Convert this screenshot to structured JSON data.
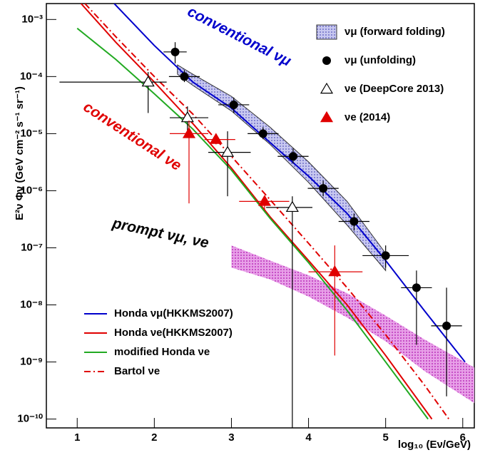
{
  "chart_data": {
    "type": "scatter",
    "y_label": "E²ν Φν (GeV cm⁻² s⁻¹ sr⁻¹)",
    "x_label": "log₁₀ (Eν/GeV)",
    "xlim": [
      0.6,
      6.15
    ],
    "ylim": [
      7e-11,
      0.0019
    ],
    "y_log": true,
    "grid": false,
    "xticks": [
      1,
      2,
      3,
      4,
      5,
      6
    ],
    "yticks": [
      {
        "value": 1e-10,
        "label": "10⁻¹⁰"
      },
      {
        "value": 1e-09,
        "label": "10⁻⁹"
      },
      {
        "value": 1e-08,
        "label": "10⁻⁸"
      },
      {
        "value": 1e-07,
        "label": "10⁻⁷"
      },
      {
        "value": 1e-06,
        "label": "10⁻⁶"
      },
      {
        "value": 1e-05,
        "label": "10⁻⁵"
      },
      {
        "value": 0.0001,
        "label": "10⁻⁴"
      },
      {
        "value": 0.001,
        "label": "10⁻³"
      }
    ],
    "annotations": [
      {
        "text": "conventional νμ",
        "color": "#0000cc"
      },
      {
        "text": "conventional νe",
        "color": "#e00000"
      },
      {
        "text": "prompt νμ, νe",
        "color": "#000000"
      }
    ],
    "series": [
      {
        "name": "Honda νμ(HKKMS2007)",
        "type": "line",
        "color": "#0000cc",
        "dash": "solid",
        "legend": "lower-left",
        "x": [
          1.48,
          2,
          2.5,
          3,
          3.5,
          4,
          4.5,
          5,
          5.5,
          6.03
        ],
        "values": [
          0.0019,
          0.00035,
          8e-05,
          2.8e-05,
          7e-06,
          1.8e-06,
          4e-07,
          6e-08,
          8e-09,
          1e-09
        ]
      },
      {
        "name": "Honda νe(HKKMS2007)",
        "type": "line",
        "color": "#e00000",
        "dash": "solid",
        "legend": "lower-left",
        "x": [
          1.05,
          1.5,
          2,
          2.5,
          3,
          3.5,
          4,
          4.5,
          5,
          5.6
        ],
        "values": [
          0.0019,
          0.0004,
          8e-05,
          1.5e-05,
          2.5e-06,
          3.5e-07,
          6e-08,
          1e-08,
          1.3e-09,
          1e-10
        ]
      },
      {
        "name": "modified Honda νe",
        "type": "line",
        "color": "#22aa22",
        "dash": "solid",
        "legend": "lower-left",
        "x": [
          1.0,
          1.5,
          2,
          2.5,
          3,
          3.5,
          4,
          4.5,
          5,
          5.55
        ],
        "values": [
          0.0007,
          0.0002,
          5e-05,
          1.2e-05,
          2.3e-06,
          3.3e-07,
          5.5e-08,
          8e-09,
          1e-09,
          1e-10
        ]
      },
      {
        "name": "Bartol νe",
        "type": "line",
        "color": "#e00000",
        "dash": "dashdot",
        "legend": "lower-left",
        "x": [
          1.1,
          1.5,
          2,
          2.5,
          3,
          3.5,
          4,
          4.5,
          5,
          5.5,
          5.82
        ],
        "values": [
          0.0019,
          0.0005,
          0.0001,
          2.2e-05,
          4e-06,
          7e-07,
          1.2e-07,
          2e-08,
          3e-09,
          4e-10,
          1e-10
        ]
      },
      {
        "name": "prompt band",
        "type": "band",
        "color": "#cc44cc",
        "legend": "none",
        "x": [
          3,
          3.5,
          4,
          4.5,
          5,
          5.5,
          6.15
        ],
        "upper": [
          1.1e-07,
          6e-08,
          3.3e-08,
          1.6e-08,
          6.5e-09,
          2.5e-09,
          8e-10
        ],
        "lower": [
          4.5e-08,
          2.8e-08,
          1.4e-08,
          6e-09,
          2.3e-09,
          7e-10,
          1.9e-10
        ]
      },
      {
        "name": "νμ (forward folding)",
        "type": "band",
        "color": "#7777cc",
        "legend": "upper-right",
        "x": [
          2.3,
          2.5,
          3,
          3.5,
          4,
          4.5,
          5
        ],
        "upper": [
          0.00016,
          0.00011,
          4.5e-05,
          1.3e-05,
          3.2e-06,
          6.5e-07,
          8e-08
        ],
        "lower": [
          0.00011,
          7e-05,
          2.5e-05,
          6.5e-06,
          1.4e-06,
          2.5e-07,
          4e-08
        ]
      },
      {
        "name": "νμ (unfolding)",
        "type": "errorbar",
        "color": "#000000",
        "marker": "circle",
        "legend": "upper-right",
        "x": [
          2.27,
          2.39,
          3.03,
          3.41,
          3.8,
          4.19,
          4.59,
          5.0,
          5.4,
          5.79
        ],
        "values": [
          0.00027,
          0.0001,
          3.2e-05,
          1e-05,
          4e-06,
          1.1e-06,
          2.9e-07,
          7.3e-08,
          2e-08,
          4.3e-09
        ],
        "x_low": [
          2.12,
          2.19,
          2.83,
          3.21,
          3.6,
          3.99,
          4.39,
          4.7,
          5.2,
          5.59
        ],
        "x_high": [
          2.42,
          2.59,
          3.23,
          3.61,
          4.0,
          4.39,
          4.79,
          5.3,
          5.6,
          5.99
        ],
        "y_low": [
          0.00017,
          8e-05,
          2.3e-05,
          8e-06,
          3e-06,
          8e-07,
          2e-07,
          4.5e-08,
          2e-09,
          2.5e-10
        ],
        "y_high": [
          0.0004,
          0.00013,
          4.3e-05,
          1.3e-05,
          5.5e-06,
          1.5e-06,
          4e-07,
          1.1e-07,
          4e-08,
          2e-08
        ]
      },
      {
        "name": "νe (DeepCore 2013)",
        "type": "errorbar",
        "color": "#000000",
        "marker": "triangle-open",
        "legend": "upper-right",
        "x": [
          1.92,
          2.43,
          2.95,
          3.79
        ],
        "values": [
          8e-05,
          1.9e-05,
          4.7e-06,
          5.1e-07
        ],
        "x_low": [
          0.77,
          2.2,
          2.7,
          3.45
        ],
        "x_high": [
          2.16,
          2.7,
          3.25,
          4.05
        ],
        "y_low": [
          2.3e-05,
          1.1e-05,
          8e-07,
          7e-11
        ],
        "y_high": [
          0.00012,
          3e-05,
          1.1e-05,
          8e-07
        ]
      },
      {
        "name": "νe (2014)",
        "type": "errorbar",
        "color": "#e00000",
        "marker": "triangle",
        "legend": "upper-right",
        "x": [
          2.45,
          2.8,
          3.43,
          4.34
        ],
        "values": [
          1e-05,
          7.9e-06,
          6.5e-07,
          3.8e-08
        ],
        "x_low": [
          2.2,
          2.65,
          3.1,
          4.0
        ],
        "x_high": [
          2.7,
          3.05,
          3.75,
          4.7
        ],
        "y_low": [
          6e-07,
          6.5e-06,
          4.5e-07,
          1.3e-09
        ],
        "y_high": [
          1.7e-05,
          9.5e-06,
          8e-07,
          1.1e-07
        ]
      }
    ]
  }
}
